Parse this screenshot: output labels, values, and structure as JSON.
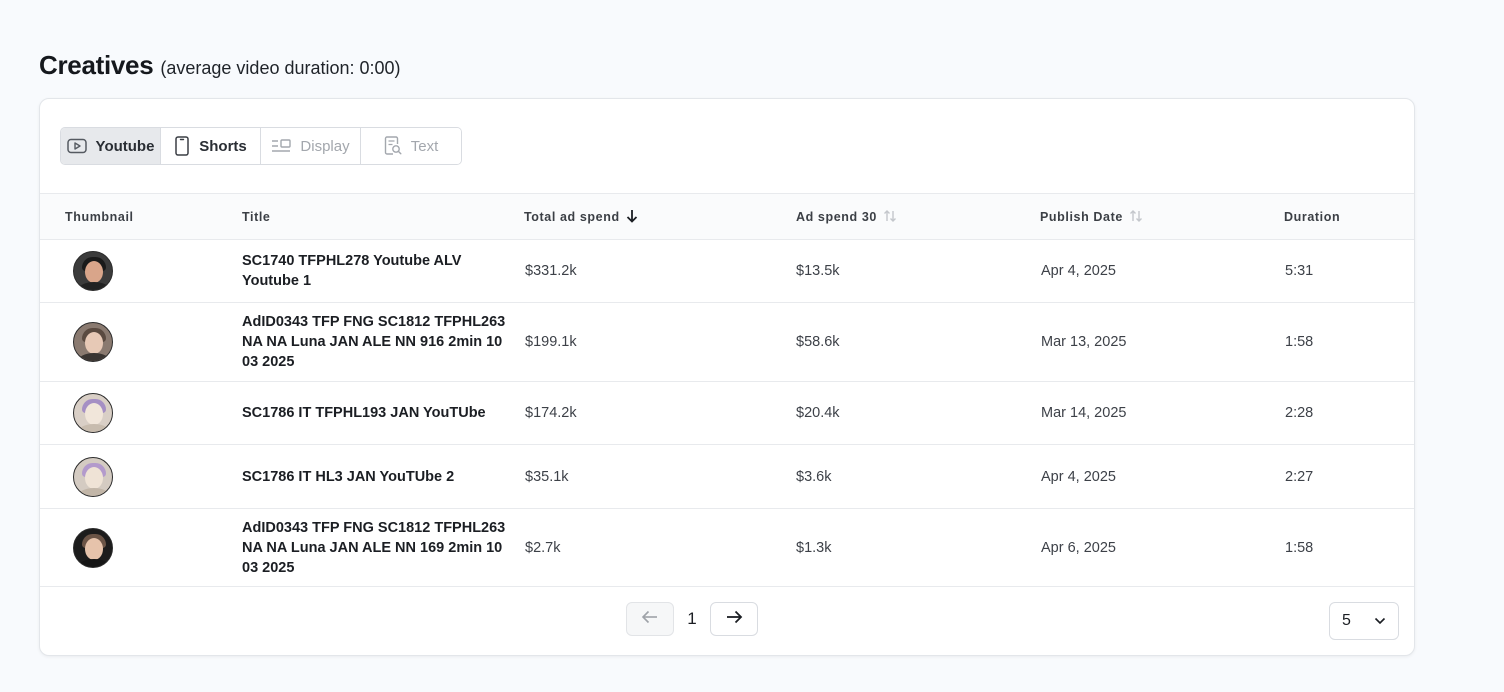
{
  "heading": {
    "title": "Creatives",
    "subtitle": "(average video duration: 0:00)"
  },
  "tabs": [
    {
      "label": "Youtube",
      "icon": "youtube-icon",
      "state": "active"
    },
    {
      "label": "Shorts",
      "icon": "phone-icon",
      "state": "enabled"
    },
    {
      "label": "Display",
      "icon": "display-icon",
      "state": "disabled"
    },
    {
      "label": "Text",
      "icon": "text-search-icon",
      "state": "disabled"
    }
  ],
  "table": {
    "columns": [
      {
        "label": "Thumbnail",
        "sort": "none"
      },
      {
        "label": "Title",
        "sort": "none"
      },
      {
        "label": "Total ad spend",
        "sort": "desc"
      },
      {
        "label": "Ad spend 30",
        "sort": "sortable"
      },
      {
        "label": "Publish Date",
        "sort": "sortable"
      },
      {
        "label": "Duration",
        "sort": "none"
      }
    ],
    "rows": [
      {
        "title": "SC1740 TFPHL278 Youtube ALV Youtube 1",
        "total": "$331.2k",
        "spend30": "$13.5k",
        "date": "Apr 4, 2025",
        "duration": "5:31"
      },
      {
        "title": "AdID0343 TFP FNG SC1812 TFPHL263 NA NA Luna JAN ALE NN 916 2min 10 03 2025",
        "total": "$199.1k",
        "spend30": "$58.6k",
        "date": "Mar 13, 2025",
        "duration": "1:58"
      },
      {
        "title": "SC1786 IT TFPHL193 JAN YouTUbe",
        "total": "$174.2k",
        "spend30": "$20.4k",
        "date": "Mar 14, 2025",
        "duration": "2:28"
      },
      {
        "title": "SC1786 IT HL3 JAN YouTUbe 2",
        "total": "$35.1k",
        "spend30": "$3.6k",
        "date": "Apr 4, 2025",
        "duration": "2:27"
      },
      {
        "title": "AdID0343 TFP FNG SC1812 TFPHL263 NA NA Luna JAN ALE NN 169 2min 10 03 2025",
        "total": "$2.7k",
        "spend30": "$1.3k",
        "date": "Apr 6, 2025",
        "duration": "1:58"
      }
    ]
  },
  "pagination": {
    "current_page": "1",
    "page_size": "5"
  },
  "colors": {
    "active_tab_bg": "#e7e9ec",
    "disabled_text": "#a3a7ad",
    "page_bg": "#f8fafd"
  }
}
